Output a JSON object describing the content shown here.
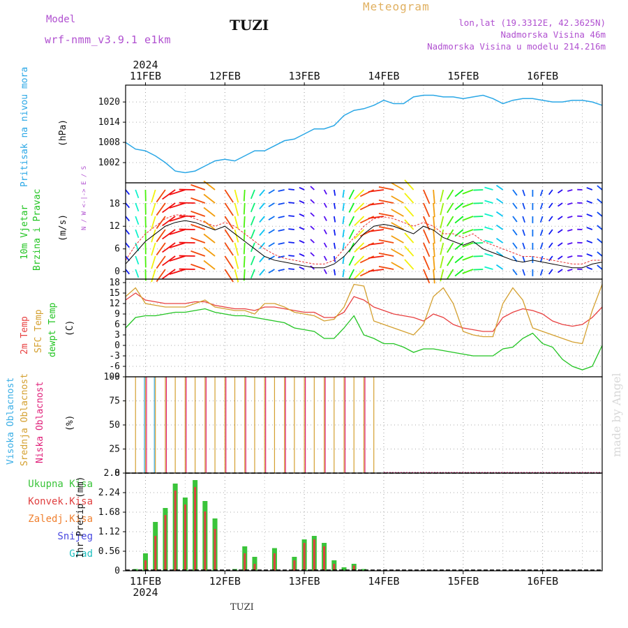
{
  "header": {
    "model_label": "Model",
    "model_name": "wrf-nmm_v3.9.1 e1km",
    "station": "TUZI",
    "title": "Meteogram",
    "lonlat": "lon,lat (19.3312E, 42.3625N)",
    "elevation": "Nadmorska Visina 46m",
    "model_elevation": "Nadmorska Visina u modelu 214.216m"
  },
  "footer": {
    "station": "TUZI",
    "watermark": "made by Angel"
  },
  "time_axis": {
    "year": "2024",
    "days": [
      "11FEB",
      "12FEB",
      "13FEB",
      "14FEB",
      "15FEB",
      "16FEB"
    ],
    "start_hour": -6,
    "end_hour": 138
  },
  "colors": {
    "pressure": "#2aa7e6",
    "wind_speed": "#000000",
    "gust": "#e83030",
    "temp2m": "#e84040",
    "sfc_temp": "#d4a030",
    "dewpoint": "#22c422",
    "high_cloud": "#3aaee6",
    "mid_cloud": "#d4a030",
    "low_cloud": "#e0207a",
    "total_precip": "#3ac43a",
    "conv_precip": "#e04040",
    "frozen_precip": "#f08030",
    "snow": "#4848e0",
    "graupel": "#20c0c0",
    "title_purple": "#b050d0",
    "title_orange": "#e0b060"
  },
  "chart_data": [
    {
      "type": "line",
      "id": "pressure",
      "ylabel_lines": [
        "Pritisak na nivou mora",
        "(hPa)"
      ],
      "y_ticks": [
        "1002",
        "1008",
        "1014",
        "1020"
      ],
      "ylim": [
        996,
        1025
      ],
      "x_hours": [
        -6,
        -3,
        0,
        3,
        6,
        9,
        12,
        15,
        18,
        21,
        24,
        27,
        30,
        33,
        36,
        39,
        42,
        45,
        48,
        51,
        54,
        57,
        60,
        63,
        66,
        69,
        72,
        75,
        78,
        81,
        84,
        87,
        90,
        93,
        96,
        99,
        102,
        105,
        108,
        111,
        114,
        117,
        120,
        123,
        126,
        129,
        132,
        135,
        138
      ],
      "values": [
        1008,
        1006,
        1005.5,
        1004,
        1002,
        999.5,
        999,
        999.5,
        1001,
        1002.5,
        1003,
        1002.5,
        1004,
        1005.5,
        1005.5,
        1007,
        1008.5,
        1009,
        1010.5,
        1012,
        1012,
        1013,
        1016,
        1017.5,
        1018,
        1019,
        1020.5,
        1019.5,
        1019.5,
        1021.5,
        1022,
        1022,
        1021.5,
        1021.5,
        1021,
        1021.5,
        1022,
        1021,
        1019.5,
        1020.5,
        1021,
        1021,
        1020.5,
        1020,
        1020,
        1020.5,
        1020.5,
        1020,
        1019
      ]
    },
    {
      "type": "line",
      "id": "wind",
      "ylabel_lines": [
        "10m Vjetar",
        "Brzina i Pravac",
        "(m/s)"
      ],
      "compass": "N / W <-|-> E / S",
      "y_ticks": [
        "0",
        "6",
        "12",
        "18"
      ],
      "ylim": [
        -2,
        23.5
      ],
      "x_hours": [
        -6,
        -3,
        0,
        3,
        6,
        9,
        12,
        15,
        18,
        21,
        24,
        27,
        30,
        33,
        36,
        39,
        42,
        45,
        48,
        51,
        54,
        57,
        60,
        63,
        66,
        69,
        72,
        75,
        78,
        81,
        84,
        87,
        90,
        93,
        96,
        99,
        102,
        105,
        108,
        111,
        114,
        117,
        120,
        123,
        126,
        129,
        132,
        135,
        138
      ],
      "series": [
        {
          "name": "speed",
          "values": [
            2,
            5,
            8,
            10,
            12,
            13,
            13.5,
            13,
            12,
            11,
            12,
            10,
            8,
            6,
            4,
            3,
            2.5,
            2,
            1.5,
            1,
            1,
            2,
            4,
            7,
            10,
            12,
            12.5,
            12,
            11,
            10,
            12,
            11,
            9,
            8,
            7,
            8,
            6,
            5,
            4,
            3,
            2.5,
            3,
            2.5,
            2,
            1.5,
            1,
            1,
            2,
            2.5
          ]
        },
        {
          "name": "gust",
          "values": [
            3,
            7,
            10,
            12,
            14,
            15,
            15,
            14,
            13,
            12,
            13,
            12,
            10,
            8,
            6,
            4.5,
            3.5,
            3,
            2.5,
            2,
            2,
            3,
            6,
            9,
            12,
            14,
            14.5,
            14,
            13,
            12,
            13,
            12,
            10,
            10,
            9,
            10,
            8,
            7,
            6,
            5,
            4,
            4,
            3.5,
            3,
            2.5,
            2,
            2,
            3,
            3
          ]
        }
      ]
    },
    {
      "type": "line",
      "id": "temperature",
      "ylabel_lines": [
        "2m Temp",
        "SFC Temp",
        "dewpt Temp",
        "(C)"
      ],
      "y_ticks": [
        "-9",
        "-6",
        "-3",
        "0",
        "3",
        "6",
        "9",
        "12",
        "15",
        "18"
      ],
      "ylim": [
        -9,
        19
      ],
      "x_hours": [
        -6,
        -3,
        0,
        3,
        6,
        9,
        12,
        15,
        18,
        21,
        24,
        27,
        30,
        33,
        36,
        39,
        42,
        45,
        48,
        51,
        54,
        57,
        60,
        63,
        66,
        69,
        72,
        75,
        78,
        81,
        84,
        87,
        90,
        93,
        96,
        99,
        102,
        105,
        108,
        111,
        114,
        117,
        120,
        123,
        126,
        129,
        132,
        135,
        138
      ],
      "series": [
        {
          "name": "2m Temp",
          "values": [
            13,
            15,
            13,
            12.5,
            12,
            12,
            12,
            12.5,
            12.5,
            11.5,
            11,
            10.5,
            10.5,
            10,
            11,
            11,
            10.5,
            10,
            9.5,
            9.5,
            8,
            8,
            9.5,
            14,
            13,
            11,
            10,
            9,
            8.5,
            8,
            7,
            9,
            8,
            6,
            5,
            4.5,
            4,
            4,
            8,
            9.5,
            10.5,
            10,
            9,
            7,
            6,
            5.5,
            6,
            8,
            11
          ]
        },
        {
          "name": "SFC Temp",
          "values": [
            14,
            16.5,
            12,
            11.5,
            11,
            11,
            11,
            12,
            13,
            11,
            10.5,
            10,
            10,
            9,
            12,
            12,
            11,
            9.5,
            9,
            8.5,
            7,
            7.5,
            11,
            17.5,
            17,
            7,
            6,
            5,
            4,
            3,
            6,
            14,
            16.5,
            12,
            4,
            3,
            2.5,
            2.5,
            12,
            16.5,
            13,
            5,
            4,
            3,
            2,
            1,
            0.5,
            10,
            17.5
          ]
        },
        {
          "name": "dewpt Temp",
          "values": [
            5,
            8,
            8.5,
            8.5,
            9,
            9.5,
            9.5,
            10,
            10.5,
            9.5,
            9,
            8.5,
            8.5,
            8,
            7.5,
            7,
            6.5,
            5,
            4.5,
            4,
            2,
            2,
            5,
            8.5,
            3,
            2,
            0.5,
            0.5,
            -0.5,
            -2,
            -1,
            -1,
            -1.5,
            -2,
            -2.5,
            -3,
            -3,
            -3,
            -1,
            -0.5,
            2,
            3.5,
            0.5,
            -0.5,
            -4,
            -6,
            -7,
            -6,
            0
          ]
        }
      ]
    },
    {
      "type": "bar",
      "id": "cloud",
      "ylabel_lines": [
        "Visoka Oblacnost",
        "Srednja Oblacnost",
        "Niska Oblacnost",
        "(%)"
      ],
      "y_ticks": [
        "0",
        "25",
        "50",
        "75",
        "100"
      ],
      "ylim": [
        0,
        100
      ],
      "x_hours": [
        -6,
        -3,
        0,
        3,
        6,
        9,
        12,
        15,
        18,
        21,
        24,
        27,
        30,
        33,
        36,
        39,
        42,
        45,
        48,
        51,
        54,
        57,
        60,
        63,
        66,
        69,
        72,
        75,
        78,
        81,
        84,
        87,
        90,
        93,
        96,
        99,
        102,
        105,
        108,
        111,
        114,
        117,
        120,
        123,
        126,
        129,
        132,
        135,
        138
      ],
      "series": [
        {
          "name": "Visoka Oblacnost",
          "values": [
            0,
            0,
            100,
            100,
            0,
            0,
            0,
            0,
            0,
            0,
            0,
            0,
            0,
            0,
            0,
            0,
            0,
            0,
            0,
            0,
            0,
            0,
            0,
            0,
            0,
            0,
            0,
            0,
            0,
            0,
            0,
            0,
            0,
            0,
            0,
            0,
            0,
            0,
            0,
            0,
            0,
            0,
            0,
            0,
            0,
            0,
            0,
            0,
            0
          ]
        },
        {
          "name": "Srednja Oblacnost",
          "values": [
            100,
            100,
            100,
            100,
            100,
            100,
            100,
            100,
            100,
            100,
            100,
            100,
            100,
            100,
            100,
            100,
            100,
            100,
            100,
            100,
            100,
            100,
            100,
            100,
            100,
            100,
            0,
            0,
            0,
            0,
            0,
            0,
            0,
            0,
            0,
            0,
            0,
            0,
            0,
            0,
            0,
            0,
            0,
            0,
            0,
            0,
            0,
            0,
            0
          ]
        },
        {
          "name": "Niska Oblacnost",
          "values": [
            0,
            0,
            100,
            0,
            100,
            0,
            100,
            0,
            100,
            0,
            100,
            0,
            100,
            0,
            100,
            0,
            100,
            0,
            100,
            0,
            100,
            0,
            100,
            0,
            100,
            0,
            0,
            0,
            0,
            0,
            0,
            0,
            0,
            0,
            0,
            0,
            0,
            0,
            0,
            0,
            0,
            0,
            0,
            0,
            0,
            0,
            0,
            0,
            0
          ]
        }
      ]
    },
    {
      "type": "bar",
      "id": "precip",
      "ylabel_lines": [
        "1hr Precip (mm)"
      ],
      "legend": [
        "Ukupna Kisa",
        "Konvek.Kisa",
        "Zaledj.Kisa",
        "Snijeg",
        "Grad"
      ],
      "y_ticks": [
        "0",
        "0.56",
        "1.12",
        "1.68",
        "2.24",
        "2.8"
      ],
      "ylim": [
        0,
        2.8
      ],
      "x_hours": [
        -6,
        -3,
        0,
        3,
        6,
        9,
        12,
        15,
        18,
        21,
        24,
        27,
        30,
        33,
        36,
        39,
        42,
        45,
        48,
        51,
        54,
        57,
        60,
        63,
        66,
        69,
        72,
        75,
        78,
        81,
        84,
        87,
        90,
        93,
        96,
        99,
        102,
        105,
        108,
        111,
        114,
        117,
        120,
        123,
        126,
        129,
        132,
        135,
        138
      ],
      "series": [
        {
          "name": "Ukupna Kisa",
          "values": [
            0,
            0.05,
            0.5,
            1.4,
            1.8,
            2.5,
            2.1,
            2.6,
            2.0,
            1.5,
            0,
            0.05,
            0.7,
            0.4,
            0,
            0.65,
            0,
            0.4,
            0.9,
            1.0,
            0.8,
            0.3,
            0.1,
            0.2,
            0.05,
            0,
            0,
            0,
            0,
            0,
            0,
            0,
            0,
            0,
            0,
            0,
            0,
            0,
            0,
            0,
            0,
            0,
            0,
            0,
            0,
            0,
            0,
            0,
            0
          ]
        },
        {
          "name": "Konvek.Kisa",
          "values": [
            0,
            0,
            0.3,
            1.0,
            1.6,
            2.3,
            1.9,
            2.4,
            1.7,
            1.2,
            0,
            0,
            0.5,
            0.2,
            0,
            0.5,
            0,
            0.3,
            0.8,
            0.9,
            0.7,
            0.2,
            0,
            0.15,
            0,
            0,
            0,
            0,
            0,
            0,
            0,
            0,
            0,
            0,
            0,
            0,
            0,
            0,
            0,
            0,
            0,
            0,
            0,
            0,
            0,
            0,
            0,
            0,
            0
          ]
        }
      ]
    }
  ]
}
